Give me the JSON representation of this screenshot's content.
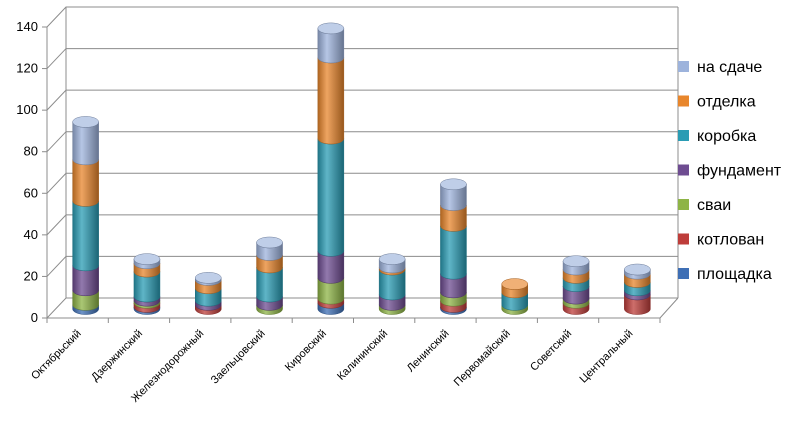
{
  "chart_data": {
    "type": "bar",
    "stacked": true,
    "style": "3d-cylinder",
    "categories": [
      "Октябрьский",
      "Дзержинский",
      "Железнодорожный",
      "Заельцовский",
      "Кировский",
      "Калининский",
      "Ленинский",
      "Первомайский",
      "Советский",
      "Центральный"
    ],
    "series": [
      {
        "name": "площадка",
        "color": "#3E6FB5",
        "values": [
          2,
          1,
          0,
          0,
          3,
          0,
          1,
          0,
          0,
          0
        ]
      },
      {
        "name": "котлован",
        "color": "#BE3D3A",
        "values": [
          0,
          2,
          2,
          0,
          2,
          0,
          3,
          0,
          3,
          7
        ]
      },
      {
        "name": "сваи",
        "color": "#8EB446",
        "values": [
          7,
          1,
          0,
          2,
          10,
          2,
          4,
          2,
          2,
          0
        ]
      },
      {
        "name": "фундамент",
        "color": "#6E4C91",
        "values": [
          12,
          2,
          2,
          4,
          13,
          5,
          9,
          0,
          6,
          2
        ]
      },
      {
        "name": "коробка",
        "color": "#2A9CB4",
        "values": [
          31,
          12,
          6,
          14,
          54,
          12,
          23,
          6,
          4,
          4
        ]
      },
      {
        "name": "отделка",
        "color": "#E8862C",
        "values": [
          20,
          4,
          4,
          6,
          39,
          1,
          10,
          4,
          4,
          4
        ]
      },
      {
        "name": "на сдаче",
        "color": "#9DB3DC",
        "values": [
          18,
          2,
          1,
          6,
          14,
          4,
          10,
          0,
          4,
          2
        ]
      }
    ],
    "ylim": [
      0,
      140
    ],
    "yticks": [
      "0",
      "20",
      "40",
      "60",
      "80",
      "100",
      "120",
      "140"
    ],
    "grid": true,
    "legend_position": "right"
  }
}
